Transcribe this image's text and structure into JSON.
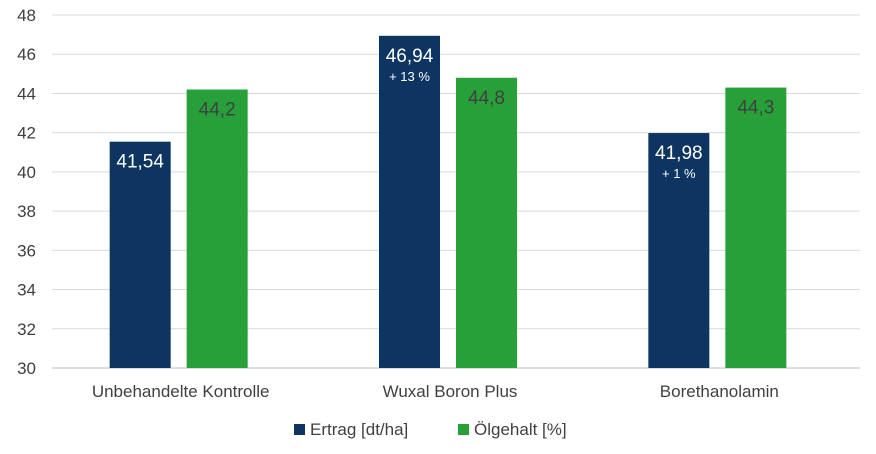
{
  "chart_data": {
    "type": "bar",
    "categories": [
      "Unbehandelte Kontrolle",
      "Wuxal Boron Plus",
      "Borethanolamin"
    ],
    "series": [
      {
        "name": "Ertrag [dt/ha]",
        "color": "#0e3461",
        "values": [
          41.54,
          46.94,
          41.98
        ],
        "labels": [
          "41,54",
          "46,94",
          "41,98"
        ],
        "sublabels": [
          "",
          "+ 13 %",
          "+ 1 %"
        ],
        "label_color": "#ffffff"
      },
      {
        "name": "Ölgehalt [%]",
        "color": "#27a03a",
        "values": [
          44.2,
          44.8,
          44.3
        ],
        "labels": [
          "44,2",
          "44,8",
          "44,3"
        ],
        "sublabels": [
          "",
          "",
          ""
        ],
        "label_color": "#404040"
      }
    ],
    "ylim": [
      30,
      48
    ],
    "yticks": [
      30,
      32,
      34,
      36,
      38,
      40,
      42,
      44,
      46,
      48
    ],
    "grid": true,
    "legend_position": "bottom",
    "title": "",
    "xlabel": "",
    "ylabel": ""
  }
}
